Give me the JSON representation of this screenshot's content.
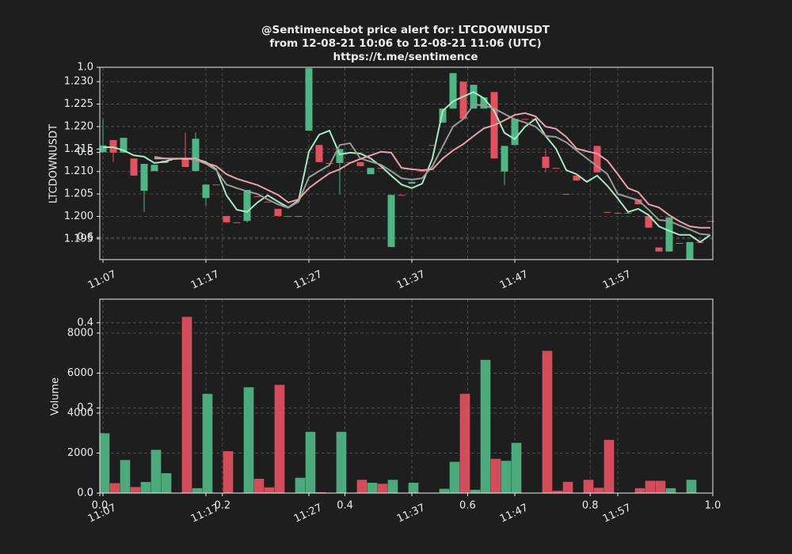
{
  "chart_data": [
    {
      "type": "candlestick",
      "title": "@Sentimencebot price alert for: LTCDOWNUSDT",
      "subtitle": "from 12-08-21 10:06 to 12-08-21 11:06 (UTC)",
      "link": "https://t.me/sentimence",
      "y_label": "LTCDOWNUSDT",
      "x": [
        "11:07",
        "11:08",
        "11:09",
        "11:10",
        "11:11",
        "11:12",
        "11:13",
        "11:14",
        "11:15",
        "11:16",
        "11:17",
        "11:18",
        "11:19",
        "11:20",
        "11:21",
        "11:22",
        "11:23",
        "11:24",
        "11:25",
        "11:26",
        "11:27",
        "11:28",
        "11:29",
        "11:30",
        "11:31",
        "11:32",
        "11:33",
        "11:34",
        "11:35",
        "11:36",
        "11:37",
        "11:38",
        "11:39",
        "11:40",
        "11:41",
        "11:42",
        "11:43",
        "11:44",
        "11:45",
        "11:46",
        "11:47",
        "11:48",
        "11:49",
        "11:50",
        "11:51",
        "11:52",
        "11:53",
        "11:54",
        "11:55",
        "11:56",
        "11:57",
        "11:58",
        "11:59",
        "12:00",
        "12:01",
        "12:02",
        "12:03",
        "12:04",
        "12:05",
        "12:06"
      ],
      "xticks": [
        "11:07",
        "11:17",
        "11:27",
        "11:37",
        "11:47",
        "11:57"
      ],
      "open": [
        1.2143,
        1.217,
        1.2142,
        1.2129,
        1.2057,
        1.2101,
        1.2119,
        1.2129,
        1.2129,
        1.2101,
        1.2041,
        1.2071,
        1.2001,
        1.1987,
        1.199,
        1.2045,
        1.2033,
        1.2017,
        1.2001,
        1.2001,
        1.2191,
        1.2159,
        1.2119,
        1.2119,
        1.2121,
        1.2121,
        1.2094,
        1.2108,
        1.1932,
        1.2048,
        1.2073,
        1.2101,
        1.2159,
        1.2209,
        1.224,
        1.23,
        1.224,
        1.224,
        1.2277,
        1.21,
        1.2159,
        1.2217,
        1.2217,
        1.2133,
        1.2108,
        1.205,
        1.2091,
        1.208,
        1.2157,
        1.201,
        1.2008,
        1.2008,
        1.2038,
        1.2001,
        1.1931,
        1.1922,
        1.1941,
        1.1904,
        1.1943,
        1.199
      ],
      "high": [
        1.2217,
        1.217,
        1.2175,
        1.2129,
        1.2117,
        1.2115,
        1.2124,
        1.2129,
        1.2187,
        1.2187,
        1.2071,
        1.2071,
        1.2001,
        1.1987,
        1.2059,
        1.2045,
        1.2033,
        1.2017,
        1.2001,
        1.2001,
        1.233,
        1.2159,
        1.2119,
        1.215,
        1.2121,
        1.2121,
        1.2108,
        1.2108,
        1.2048,
        1.2048,
        1.2077,
        1.2101,
        1.2159,
        1.224,
        1.2319,
        1.23,
        1.2293,
        1.2265,
        1.2277,
        1.2157,
        1.2217,
        1.2217,
        1.2217,
        1.2148,
        1.2108,
        1.205,
        1.2091,
        1.208,
        1.2157,
        1.201,
        1.2008,
        1.2008,
        1.2038,
        1.2001,
        1.1931,
        1.1998,
        1.1941,
        1.1943,
        1.1943,
        1.199
      ],
      "low": [
        1.2142,
        1.2121,
        1.2142,
        1.2091,
        1.201,
        1.2101,
        1.2119,
        1.2129,
        1.211,
        1.2101,
        1.2024,
        1.2071,
        1.1987,
        1.1987,
        1.1987,
        1.2045,
        1.2033,
        1.2001,
        1.2001,
        1.2001,
        1.2191,
        1.2121,
        1.2119,
        1.2049,
        1.2121,
        1.2112,
        1.2094,
        1.2108,
        1.1932,
        1.2048,
        1.2073,
        1.2101,
        1.2159,
        1.2209,
        1.224,
        1.2217,
        1.224,
        1.224,
        1.2129,
        1.207,
        1.2159,
        1.2217,
        1.2217,
        1.2098,
        1.2108,
        1.205,
        1.208,
        1.208,
        1.2098,
        1.201,
        1.2008,
        1.2008,
        1.2027,
        1.1975,
        1.1922,
        1.1922,
        1.1941,
        1.1904,
        1.1943,
        1.199
      ],
      "close": [
        1.2158,
        1.2142,
        1.2175,
        1.2091,
        1.2117,
        1.2115,
        1.2124,
        1.2129,
        1.211,
        1.2173,
        1.2071,
        1.2071,
        1.1987,
        1.1987,
        1.2059,
        1.2045,
        1.2033,
        1.2001,
        1.2001,
        1.2001,
        1.233,
        1.2121,
        1.2119,
        1.215,
        1.2121,
        1.2112,
        1.2108,
        1.2108,
        1.2048,
        1.2048,
        1.2077,
        1.2101,
        1.2159,
        1.224,
        1.2319,
        1.2217,
        1.2293,
        1.2265,
        1.2129,
        1.2157,
        1.2217,
        1.2217,
        1.2217,
        1.2108,
        1.2108,
        1.205,
        1.208,
        1.208,
        1.2098,
        1.201,
        1.2008,
        1.2008,
        1.2027,
        1.1975,
        1.1922,
        1.1998,
        1.1941,
        1.1943,
        1.1943,
        1.199
      ],
      "up_color": "#4fb583",
      "down_color": "#e3505f",
      "series": [
        {
          "color": "#a8e8c4",
          "values": [
            1.2154,
            1.2154,
            1.2147,
            1.2136,
            1.2133,
            1.2119,
            1.2122,
            1.2129,
            1.2128,
            1.2128,
            1.2121,
            1.2105,
            1.2047,
            1.2015,
            1.201,
            1.2031,
            1.2047,
            1.2033,
            1.202,
            1.2036,
            1.2144,
            1.2182,
            1.2191,
            1.2138,
            1.2142,
            1.214,
            1.2129,
            1.2112,
            1.2091,
            1.2071,
            1.2063,
            1.2073,
            1.2129,
            1.2235,
            1.2256,
            1.2267,
            1.2277,
            1.2263,
            1.2235,
            1.2186,
            1.2172,
            1.22,
            1.2217,
            1.2179,
            1.2151,
            1.2103,
            1.2094,
            1.2077,
            1.2091,
            1.2068,
            1.204,
            1.201,
            1.2017,
            1.2003,
            1.1978,
            1.1968,
            1.1959,
            1.1959,
            1.1943,
            1.1959
          ]
        },
        {
          "color": "#9a9a9a",
          "values": [
            null,
            null,
            null,
            null,
            null,
            1.2133,
            1.2129,
            1.2129,
            1.2129,
            1.2126,
            1.2117,
            1.2103,
            1.2071,
            1.2063,
            1.2056,
            1.205,
            1.2038,
            1.2027,
            1.2019,
            1.2033,
            1.2087,
            1.2101,
            1.2114,
            1.2159,
            1.2163,
            1.2129,
            1.2122,
            1.2115,
            1.2101,
            1.2085,
            1.2082,
            1.2085,
            1.2112,
            1.2156,
            1.22,
            1.2217,
            1.2249,
            1.2247,
            1.224,
            1.2228,
            1.2216,
            1.2209,
            1.22,
            1.2179,
            1.2177,
            1.2165,
            1.2147,
            1.2129,
            1.2112,
            1.2094,
            1.205,
            1.2043,
            1.2036,
            1.2015,
            1.1992,
            1.199,
            1.198,
            1.1971,
            1.1961,
            1.1959
          ]
        },
        {
          "color": "#e8a2aa",
          "values": [
            null,
            null,
            null,
            null,
            null,
            1.2129,
            1.2129,
            1.2128,
            1.2129,
            1.2129,
            1.2119,
            1.2112,
            1.2094,
            1.2084,
            1.2077,
            1.207,
            1.2059,
            1.2048,
            1.2031,
            1.2038,
            1.2063,
            1.208,
            1.2096,
            1.2105,
            1.2119,
            1.2128,
            1.2136,
            1.2144,
            1.2142,
            1.2108,
            1.2105,
            1.2103,
            1.2105,
            1.2129,
            1.2147,
            1.2161,
            1.2179,
            1.2196,
            1.2203,
            1.2214,
            1.2226,
            1.223,
            1.2223,
            1.22,
            1.2195,
            1.2177,
            1.2151,
            1.2145,
            1.214,
            1.2124,
            1.2094,
            1.2063,
            1.2054,
            1.2027,
            1.202,
            1.2003,
            1.1989,
            1.1978,
            1.1975,
            1.1975
          ]
        }
      ],
      "ylim": [
        1.1904,
        1.2332
      ],
      "yticks": [
        1.195,
        {
          "value": 1.2,
          "label": "1.200"
        },
        1.205,
        {
          "value": 1.21,
          "label": "1.210"
        },
        1.215,
        {
          "value": 1.22,
          "label": "1.220"
        },
        1.225,
        {
          "value": 1.23,
          "label": "1.230"
        }
      ],
      "grid": true
    },
    {
      "type": "bar",
      "y_label": "Volume",
      "xticks": [
        "11:07",
        "11:17",
        "11:27",
        "11:37",
        "11:47",
        "11:57"
      ],
      "values": [
        2980,
        480,
        1640,
        290,
        540,
        2150,
        980,
        0,
        8800,
        230,
        4950,
        0,
        2080,
        0,
        5280,
        700,
        270,
        5400,
        0,
        750,
        3050,
        30,
        0,
        3050,
        0,
        650,
        500,
        450,
        650,
        0,
        500,
        0,
        0,
        200,
        1550,
        4950,
        150,
        6650,
        1700,
        1600,
        2500,
        0,
        0,
        7100,
        100,
        550,
        0,
        650,
        250,
        2650,
        0,
        0,
        230,
        600,
        600,
        230,
        0,
        650,
        0,
        0
      ],
      "colors": [
        "#4fb583",
        "#e3505f",
        "#4fb583",
        "#e3505f",
        "#4fb583",
        "#4fb583",
        "#4fb583",
        "#4fb583",
        "#e3505f",
        "#4fb583",
        "#4fb583",
        "#4fb583",
        "#e3505f",
        "#4fb583",
        "#4fb583",
        "#e3505f",
        "#e3505f",
        "#e3505f",
        "#4fb583",
        "#4fb583",
        "#4fb583",
        "#e3505f",
        "#4fb583",
        "#4fb583",
        "#4fb583",
        "#e3505f",
        "#4fb583",
        "#e3505f",
        "#4fb583",
        "#4fb583",
        "#4fb583",
        "#4fb583",
        "#4fb583",
        "#4fb583",
        "#4fb583",
        "#e3505f",
        "#4fb583",
        "#4fb583",
        "#e3505f",
        "#4fb583",
        "#4fb583",
        "#4fb583",
        "#4fb583",
        "#e3505f",
        "#e3505f",
        "#e3505f",
        "#4fb583",
        "#e3505f",
        "#e3505f",
        "#e3505f",
        "#4fb583",
        "#4fb583",
        "#e3505f",
        "#e3505f",
        "#e3505f",
        "#4fb583",
        "#4fb583",
        "#4fb583",
        "#4fb583",
        "#4fb583"
      ],
      "ylim": [
        0,
        9700
      ],
      "yticks": [
        0,
        2000,
        4000,
        6000,
        8000
      ],
      "grid": true
    },
    {
      "type": "axes",
      "xlim": [
        0,
        1
      ],
      "xticks": [
        {
          "value": 0,
          "label": "0.0"
        },
        0.2,
        0.4,
        0.6,
        0.8,
        {
          "value": 1,
          "label": "1.0"
        }
      ],
      "ylim": [
        0,
        1
      ],
      "yticks": [
        {
          "value": 0,
          "label": "0.0"
        },
        0.2,
        0.4,
        0.6,
        0.8,
        {
          "value": 1,
          "label": "1.0"
        }
      ],
      "grid": true
    }
  ]
}
